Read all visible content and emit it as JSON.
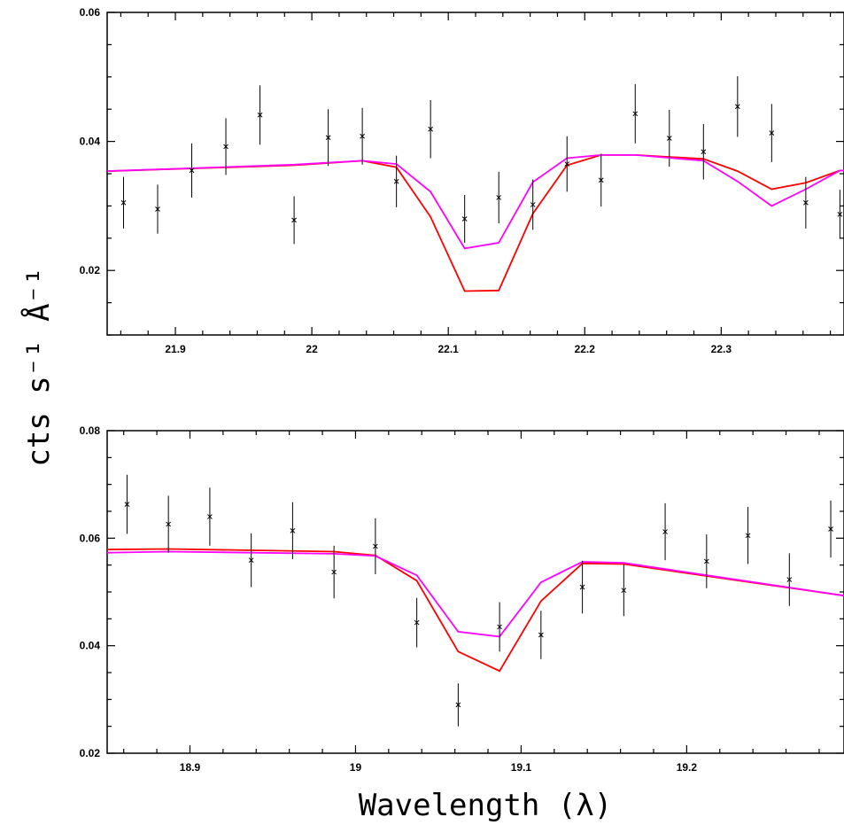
{
  "figure": {
    "xlabel": "Wavelength (λ)",
    "ylabel": "cts s⁻¹ Å⁻¹",
    "colors": {
      "data": "#000000",
      "model_red": "#ff0000",
      "model_magenta": "#ff00ff"
    }
  },
  "chart_data": [
    {
      "type": "scatter",
      "xlim": [
        21.85,
        22.39
      ],
      "ylim": [
        0.01,
        0.06
      ],
      "xticks": [
        21.9,
        22.0,
        22.1,
        22.2,
        22.3
      ],
      "xtick_labels": [
        "21.9",
        "22",
        "22.1",
        "22.2",
        "22.3"
      ],
      "yticks": [
        0.02,
        0.04,
        0.06
      ],
      "ytick_labels": [
        "0.02",
        "0.04",
        "0.06"
      ],
      "data_points": {
        "x": [
          21.862,
          21.887,
          21.912,
          21.937,
          21.962,
          21.987,
          22.012,
          22.037,
          22.062,
          22.087,
          22.112,
          22.137,
          22.162,
          22.187,
          22.212,
          22.237,
          22.262,
          22.287,
          22.312,
          22.337,
          22.362,
          22.387
        ],
        "y": [
          0.0305,
          0.0295,
          0.0355,
          0.0392,
          0.0441,
          0.0278,
          0.0406,
          0.0408,
          0.0338,
          0.0419,
          0.028,
          0.0313,
          0.0302,
          0.0365,
          0.034,
          0.0443,
          0.0405,
          0.0384,
          0.0454,
          0.0413,
          0.0305,
          0.0287
        ],
        "yerr": [
          0.004,
          0.0038,
          0.0042,
          0.0044,
          0.0046,
          0.0037,
          0.0044,
          0.0044,
          0.004,
          0.0045,
          0.0037,
          0.004,
          0.0039,
          0.0043,
          0.0041,
          0.0046,
          0.0044,
          0.0043,
          0.0047,
          0.0045,
          0.004,
          0.0038
        ]
      },
      "series": [
        {
          "color": "#ff0000",
          "x": [
            21.85,
            21.987,
            22.037,
            22.062,
            22.087,
            22.112,
            22.137,
            22.162,
            22.187,
            22.212,
            22.237,
            22.287,
            22.312,
            22.337,
            22.362,
            22.387,
            22.39
          ],
          "y": [
            0.0354,
            0.0363,
            0.037,
            0.036,
            0.0283,
            0.0168,
            0.0169,
            0.0288,
            0.0363,
            0.0379,
            0.0379,
            0.0373,
            0.0354,
            0.0326,
            0.0336,
            0.0355,
            0.0355
          ]
        },
        {
          "color": "#ff00ff",
          "x": [
            21.85,
            21.987,
            22.037,
            22.062,
            22.087,
            22.112,
            22.137,
            22.162,
            22.187,
            22.212,
            22.237,
            22.287,
            22.312,
            22.337,
            22.362,
            22.387,
            22.39
          ],
          "y": [
            0.0354,
            0.0364,
            0.037,
            0.0365,
            0.0322,
            0.0234,
            0.0243,
            0.0337,
            0.0374,
            0.0379,
            0.0379,
            0.037,
            0.0338,
            0.03,
            0.0326,
            0.0355,
            0.0355
          ]
        }
      ]
    },
    {
      "type": "scatter",
      "xlim": [
        18.85,
        19.295
      ],
      "ylim": [
        0.02,
        0.08
      ],
      "xticks": [
        18.9,
        19.0,
        19.1,
        19.2
      ],
      "xtick_labels": [
        "18.9",
        "19",
        "19.1",
        "19.2"
      ],
      "yticks": [
        0.02,
        0.04,
        0.06,
        0.08
      ],
      "ytick_labels": [
        "0.02",
        "0.04",
        "0.06",
        "0.08"
      ],
      "data_points": {
        "x": [
          18.862,
          18.887,
          18.912,
          18.937,
          18.962,
          18.987,
          19.012,
          19.037,
          19.062,
          19.087,
          19.112,
          19.137,
          19.162,
          19.187,
          19.212,
          19.237,
          19.262,
          19.287
        ],
        "y": [
          0.0663,
          0.0626,
          0.064,
          0.0559,
          0.0614,
          0.0537,
          0.0585,
          0.0443,
          0.029,
          0.0435,
          0.042,
          0.0509,
          0.0503,
          0.0612,
          0.0557,
          0.0605,
          0.0523,
          0.0617
        ],
        "yerr": [
          0.0055,
          0.0053,
          0.0054,
          0.005,
          0.0053,
          0.0049,
          0.0052,
          0.0046,
          0.004,
          0.0046,
          0.0045,
          0.0049,
          0.0048,
          0.0053,
          0.005,
          0.0053,
          0.0049,
          0.0053
        ]
      },
      "series": [
        {
          "color": "#ff0000",
          "x": [
            18.85,
            18.887,
            18.987,
            19.012,
            19.037,
            19.062,
            19.087,
            19.112,
            19.137,
            19.162,
            19.295
          ],
          "y": [
            0.0579,
            0.058,
            0.0575,
            0.0568,
            0.0521,
            0.0389,
            0.0353,
            0.0483,
            0.0553,
            0.0552,
            0.0493
          ]
        },
        {
          "color": "#ff00ff",
          "x": [
            18.85,
            18.887,
            18.987,
            19.012,
            19.037,
            19.062,
            19.087,
            19.112,
            19.137,
            19.162,
            19.295
          ],
          "y": [
            0.0573,
            0.0575,
            0.0571,
            0.0567,
            0.0531,
            0.0426,
            0.0417,
            0.0518,
            0.0556,
            0.0554,
            0.0493
          ]
        }
      ]
    }
  ]
}
